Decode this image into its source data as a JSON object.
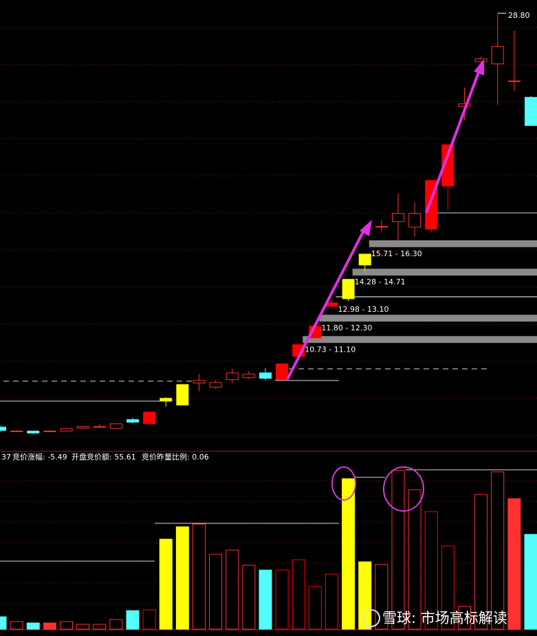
{
  "chart_data": {
    "type": "candlestick",
    "ylim": [
      5.6,
      29.5
    ],
    "open": [
      6.81,
      6.58,
      6.6,
      6.58,
      6.6,
      6.76,
      6.8,
      6.74,
      7.21,
      6.99,
      8.19,
      7.98,
      9.15,
      8.93,
      9.33,
      9.44,
      9.69,
      9.33,
      10.57,
      11.55,
      13.23,
      13.63,
      15.42,
      17.43,
      17.72,
      17.43,
      17.32,
      19.62,
      23.85,
      26.22,
      26.11,
      25.2,
      24.33
    ],
    "high": [
      6.9,
      6.65,
      6.62,
      6.62,
      6.75,
      6.88,
      6.95,
      7.0,
      7.3,
      7.61,
      8.4,
      9.07,
      9.62,
      9.3,
      9.91,
      9.8,
      9.95,
      10.17,
      11.19,
      12.17,
      13.56,
      14.66,
      16.0,
      17.8,
      19.22,
      18.74,
      19.91,
      21.81,
      24.84,
      26.5,
      28.78,
      27.87,
      24.4
    ],
    "low": [
      6.55,
      6.55,
      6.45,
      6.55,
      6.58,
      6.74,
      6.78,
      6.72,
      7.02,
      6.95,
      7.9,
      7.98,
      8.71,
      8.85,
      9.15,
      9.35,
      9.3,
      9.33,
      10.57,
      11.55,
      13.1,
      13.5,
      15.09,
      17.2,
      16.66,
      16.92,
      17.14,
      18.34,
      23.12,
      25.8,
      23.93,
      24.66,
      22.83
    ],
    "close": [
      6.63,
      6.6,
      6.49,
      6.6,
      6.73,
      6.84,
      6.84,
      6.99,
      7.07,
      7.61,
      8.34,
      9.07,
      9.29,
      9.18,
      9.69,
      9.62,
      9.4,
      10.17,
      11.19,
      12.17,
      13.41,
      14.66,
      16.0,
      17.47,
      18.16,
      18.16,
      19.91,
      21.81,
      23.99,
      26.37,
      27.03,
      25.2,
      22.83
    ],
    "colors": [
      "#54fcfc",
      "#ff3232",
      "#54fcfc",
      "#ff3232",
      "#ff3232",
      "#ff3232",
      "#ff3232",
      "#ff3232",
      "#54fcfc",
      "#ff0000",
      "#ffff00",
      "#ffff00",
      "#ff3232",
      "#ff3232",
      "#ff3232",
      "#ff3232",
      "#54fcfc",
      "#ff0000",
      "#ff0000",
      "#ff0000",
      "#ff0000",
      "#ffff00",
      "#ffff00",
      "#ff3232",
      "#ff3232",
      "#ff3232",
      "#ff0000",
      "#ff0000",
      "#ff3232",
      "#ff3232",
      "#ff3232",
      "#ff3232",
      "#54fcfc"
    ],
    "filled": [
      true,
      false,
      true,
      true,
      false,
      false,
      false,
      false,
      true,
      true,
      true,
      true,
      false,
      false,
      false,
      false,
      true,
      true,
      true,
      true,
      true,
      true,
      true,
      false,
      false,
      false,
      true,
      true,
      false,
      false,
      false,
      true,
      true
    ],
    "max_label": {
      "value": 28.8,
      "label": "28.80"
    },
    "zones": [
      {
        "label": "10.73 - 11.10",
        "low": 10.73,
        "high": 11.1
      },
      {
        "label": "11.80 - 12.30",
        "low": 11.8,
        "high": 12.3
      },
      {
        "label": "12.98 - 13.10",
        "low": 12.98,
        "high": 13.1
      },
      {
        "label": "14.28 - 14.71",
        "low": 14.28,
        "high": 14.71
      },
      {
        "label": "15.71 - 16.30",
        "low": 15.71,
        "high": 16.3
      }
    ],
    "volume": {
      "ylim": [
        0,
        240
      ],
      "values": [
        18,
        11,
        9,
        9,
        11,
        7,
        7,
        14,
        27,
        28,
        131,
        149,
        153,
        109,
        115,
        93,
        86,
        86,
        101,
        62,
        80,
        219,
        98,
        94,
        231,
        203,
        171,
        121,
        33,
        196,
        229,
        190,
        138
      ]
    },
    "info": [
      "37",
      "竞价涨幅: -5.49",
      "开盘竞价额: 55.61",
      "竞价昨量比例: 0.06"
    ],
    "watermark": "雪球: 市场高标解读"
  }
}
